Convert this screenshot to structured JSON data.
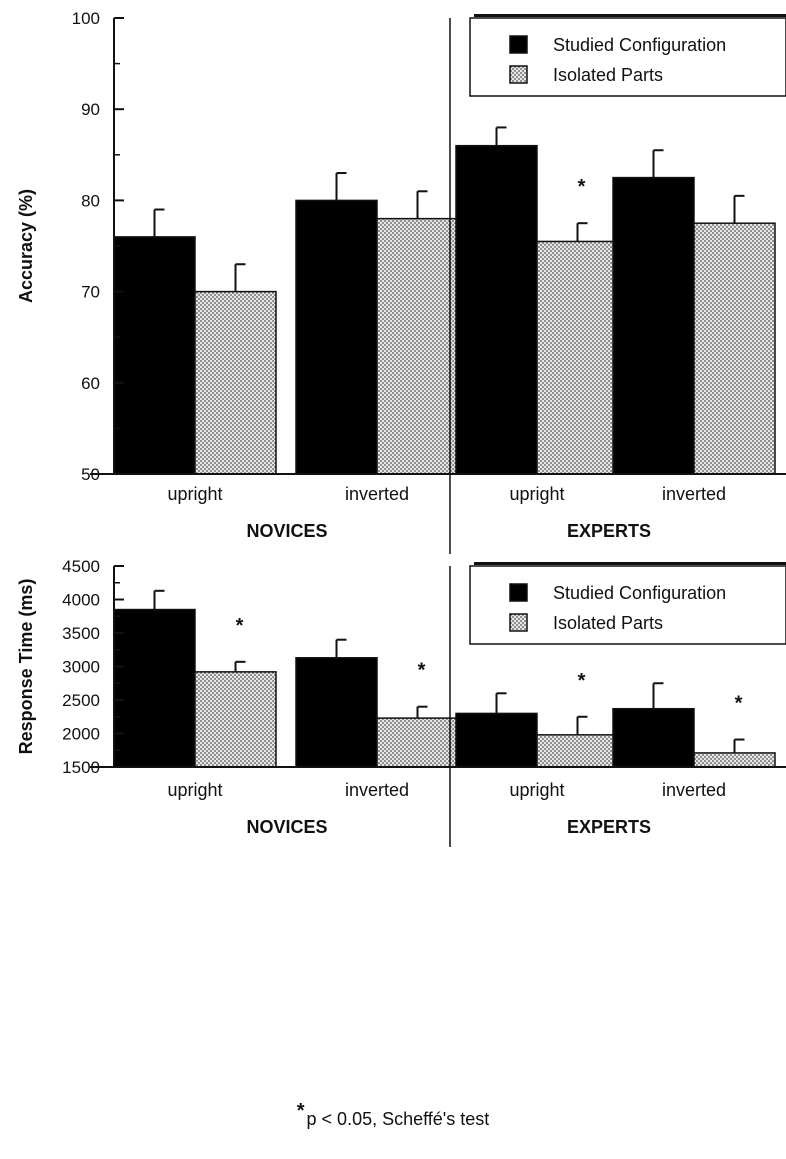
{
  "chart_data": [
    {
      "type": "bar",
      "ylabel": "Accuracy (%)",
      "ylim": [
        50,
        100
      ],
      "yticks": [
        50,
        60,
        70,
        80,
        90,
        100
      ],
      "groups": [
        "NOVICES",
        "EXPERTS"
      ],
      "categories": [
        "upright",
        "inverted",
        "upright",
        "inverted"
      ],
      "series": [
        {
          "name": "Studied Configuration",
          "values": [
            76,
            80,
            86,
            82.5
          ],
          "errors": [
            3,
            3,
            2,
            3
          ]
        },
        {
          "name": "Isolated Parts",
          "values": [
            70,
            78,
            75.5,
            77.5
          ],
          "errors": [
            3,
            3,
            2,
            3
          ]
        }
      ],
      "significance": [
        false,
        false,
        true,
        false
      ],
      "legend": "top-right"
    },
    {
      "type": "bar",
      "ylabel": "Response Time (ms)",
      "ylim": [
        1500,
        4500
      ],
      "yticks": [
        1500,
        2000,
        2500,
        3000,
        3500,
        4000,
        4500
      ],
      "groups": [
        "NOVICES",
        "EXPERTS"
      ],
      "categories": [
        "upright",
        "inverted",
        "upright",
        "inverted"
      ],
      "series": [
        {
          "name": "Studied Configuration",
          "values": [
            3850,
            3130,
            2300,
            2370
          ],
          "errors": [
            280,
            270,
            300,
            380
          ]
        },
        {
          "name": "Isolated Parts",
          "values": [
            2920,
            2230,
            1980,
            1710
          ],
          "errors": [
            150,
            170,
            270,
            200
          ]
        }
      ],
      "significance": [
        true,
        true,
        true,
        true
      ],
      "legend": "top-right"
    }
  ],
  "footnote": {
    "star": "*",
    "text": "p < 0.05, Scheffé's test"
  },
  "colors": {
    "studied": "#000000",
    "isolated": "#d4d4d4",
    "axis": "#111111"
  }
}
